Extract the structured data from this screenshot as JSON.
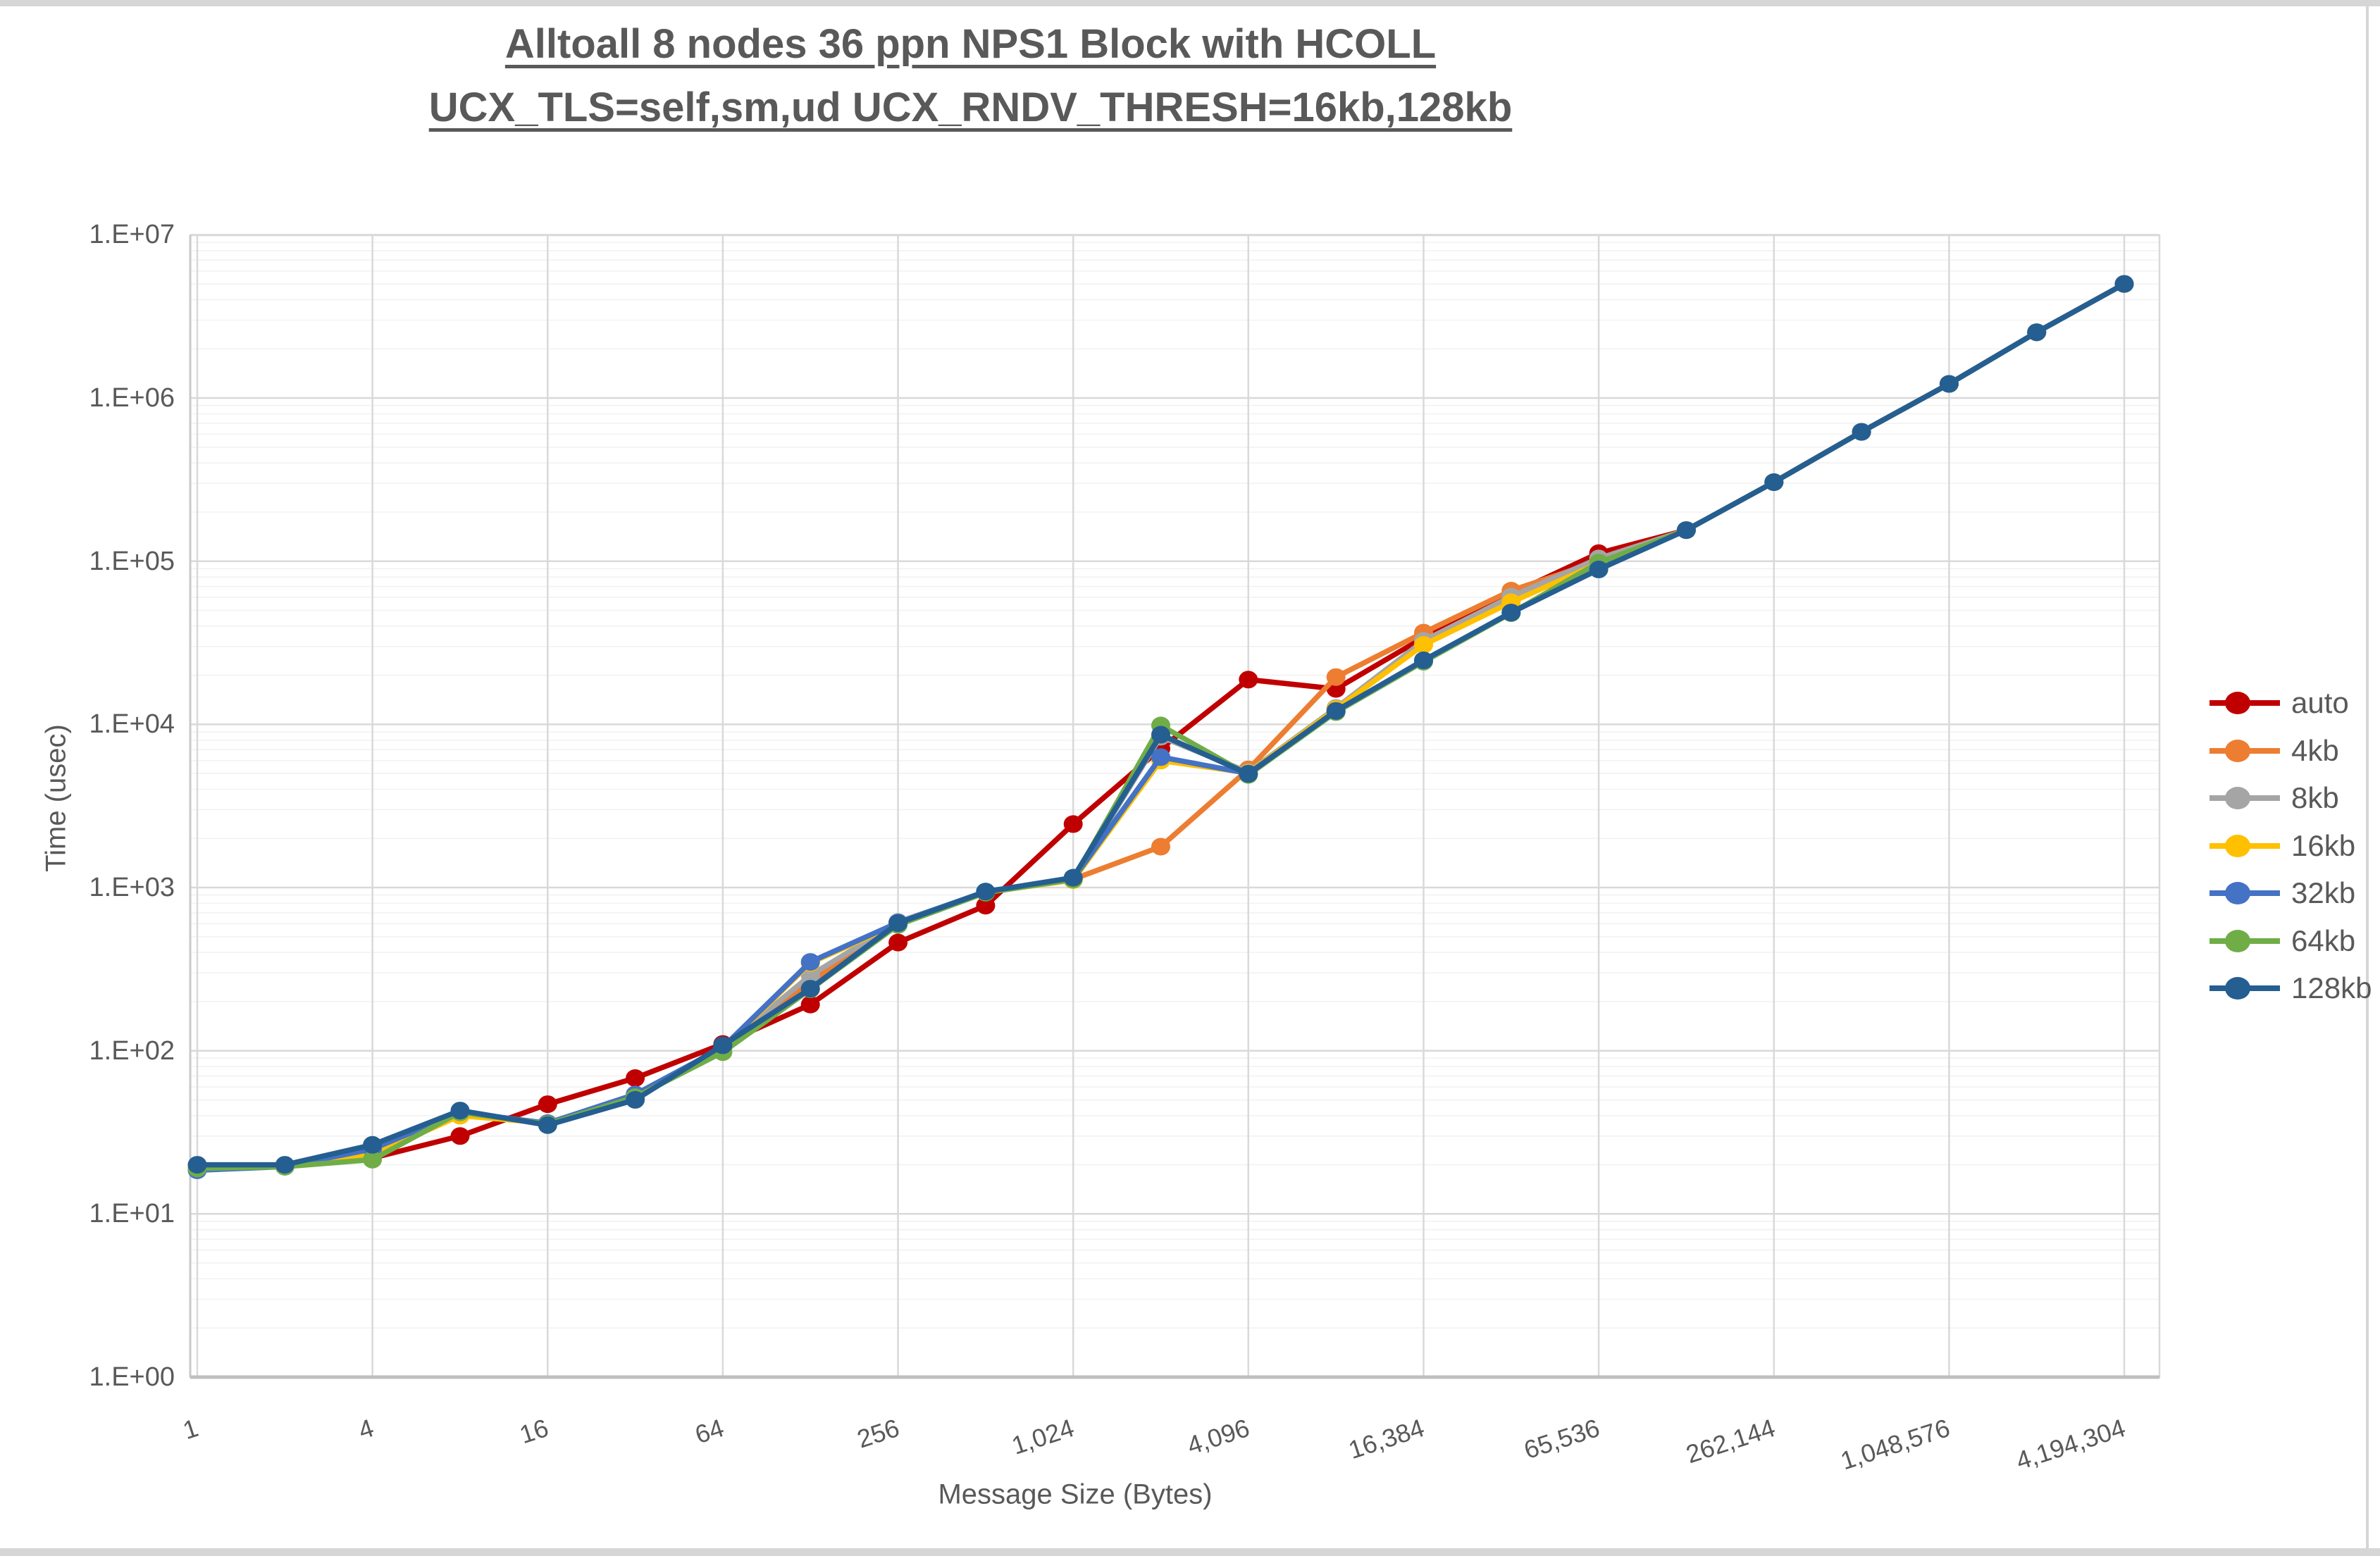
{
  "title": {
    "line1": "Alltoall 8 nodes 36 ppn NPS1 Block with HCOLL",
    "line2": "UCX_TLS=self,sm,ud UCX_RNDV_THRESH=16kb,128kb"
  },
  "axes": {
    "x_title": "Message Size (Bytes)",
    "y_title": "Time (usec)",
    "y_tick_labels": [
      "1.E+00",
      "1.E+01",
      "1.E+02",
      "1.E+03",
      "1.E+04",
      "1.E+05",
      "1.E+06",
      "1.E+07"
    ],
    "x_tick_labels": [
      "1",
      "4",
      "16",
      "64",
      "256",
      "1,024",
      "4,096",
      "16,384",
      "65,536",
      "262,144",
      "1,048,576",
      "4,194,304"
    ]
  },
  "colors": {
    "text": "#595959",
    "major_grid": "#d9d9d9",
    "minor_grid": "#f2f2f2",
    "axis_line": "#bfbfbf"
  },
  "chart_data": {
    "type": "line",
    "title": "Alltoall 8 nodes 36 ppn NPS1 Block with HCOLL UCX_TLS=self,sm,ud UCX_RNDV_THRESH=16kb,128kb",
    "xlabel": "Message Size (Bytes)",
    "ylabel": "Time (usec)",
    "x_scale": "log2-categories",
    "y_scale": "log10",
    "ylim": [
      1,
      10000000
    ],
    "grid": true,
    "legend_position": "right",
    "x": [
      1,
      2,
      4,
      8,
      16,
      32,
      64,
      128,
      256,
      512,
      1024,
      2048,
      4096,
      8192,
      16384,
      32768,
      65536,
      131072,
      262144,
      524288,
      1048576,
      2097152,
      4194304
    ],
    "series": [
      {
        "name": "auto",
        "color": "#C00000",
        "values": [
          19,
          19.5,
          22,
          30,
          47,
          68,
          110,
          192,
          460,
          775,
          2450,
          7100,
          18800,
          16500,
          34000,
          63000,
          112000,
          155000,
          305000,
          620000,
          1220000,
          2530000,
          5000000
        ]
      },
      {
        "name": "4kb",
        "color": "#ED7D31",
        "values": [
          19,
          19.5,
          24,
          41,
          36,
          52,
          105,
          265,
          595,
          935,
          1125,
          1780,
          5300,
          19500,
          36500,
          66000,
          100000,
          155000,
          305000,
          620000,
          1220000,
          2530000,
          5000000
        ]
      },
      {
        "name": "8kb",
        "color": "#A5A5A5",
        "values": [
          19,
          19.5,
          24,
          41,
          36,
          52,
          104,
          290,
          615,
          940,
          1135,
          8400,
          5100,
          12600,
          32500,
          60700,
          104000,
          155000,
          305000,
          620000,
          1220000,
          2530000,
          5000000
        ]
      },
      {
        "name": "16kb",
        "color": "#FFC000",
        "values": [
          19,
          19.5,
          23,
          40,
          36,
          52,
          103,
          345,
          600,
          935,
          1110,
          6000,
          5050,
          12400,
          30700,
          56000,
          97000,
          155000,
          305000,
          620000,
          1220000,
          2530000,
          5000000
        ]
      },
      {
        "name": "32kb",
        "color": "#4472C4",
        "values": [
          18.5,
          19.5,
          25,
          42,
          36,
          54,
          105,
          350,
          610,
          945,
          1130,
          6300,
          5000,
          12000,
          24500,
          48500,
          92000,
          155000,
          305000,
          620000,
          1220000,
          2530000,
          5000000
        ]
      },
      {
        "name": "64kb",
        "color": "#70AD47",
        "values": [
          19,
          19.5,
          21.5,
          42,
          35.5,
          52,
          98,
          238,
          590,
          930,
          1120,
          9850,
          4900,
          11900,
          24200,
          48000,
          98000,
          155000,
          305000,
          620000,
          1220000,
          2530000,
          5000000
        ]
      },
      {
        "name": "128kb",
        "color": "#255E91",
        "values": [
          20,
          20,
          26.5,
          43,
          35,
          50,
          108,
          240,
          605,
          944,
          1150,
          8650,
          4970,
          12100,
          24700,
          48400,
          89000,
          155000,
          305000,
          620000,
          1220000,
          2530000,
          5000000
        ]
      }
    ]
  }
}
